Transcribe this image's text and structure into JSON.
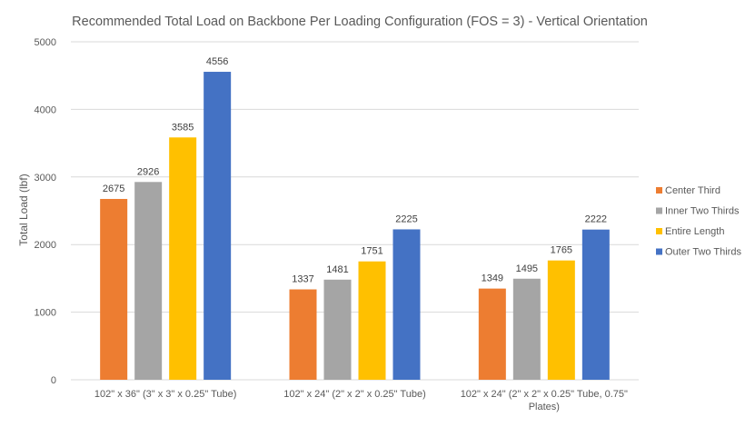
{
  "chart_data": {
    "type": "bar",
    "title": "Recommended  Total Load on Backbone Per Loading Configuration (FOS = 3) - Vertical Orientation",
    "xlabel": "",
    "ylabel": "Total Load (lbf)",
    "ylim": [
      0,
      5000
    ],
    "yticks": [
      0,
      1000,
      2000,
      3000,
      4000,
      5000
    ],
    "grid": true,
    "legend_position": "right",
    "categories": [
      [
        "102\" x 36\" (3\" x 3\" x 0.25\" Tube)"
      ],
      [
        "102\" x 24\" (2\" x 2\" x 0.25\" Tube)"
      ],
      [
        "102\" x 24\" (2\" x 2\" x 0.25\" Tube, 0.75\"",
        "Plates)"
      ]
    ],
    "series": [
      {
        "name": "Center Third",
        "color": "#ED7D31",
        "values": [
          2675,
          1337,
          1349
        ]
      },
      {
        "name": "Inner Two Thirds",
        "color": "#A5A5A5",
        "values": [
          2926,
          1481,
          1495
        ]
      },
      {
        "name": "Entire Length",
        "color": "#FFC000",
        "values": [
          3585,
          1751,
          1765
        ]
      },
      {
        "name": "Outer Two Thirds",
        "color": "#4472C4",
        "values": [
          4556,
          2225,
          2222
        ]
      }
    ]
  }
}
